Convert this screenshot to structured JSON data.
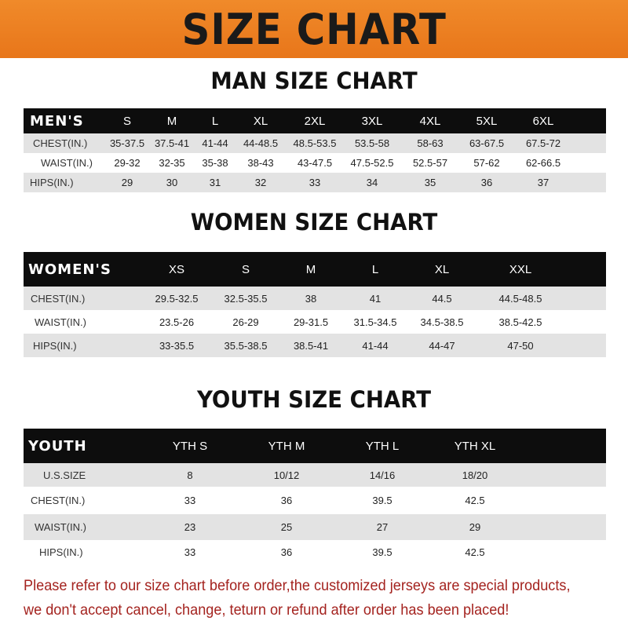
{
  "banner": {
    "title": "SIZE CHART",
    "color": "#ee8024"
  },
  "men": {
    "title": "MAN SIZE CHART",
    "header": "MEN'S",
    "sizes": [
      "S",
      "M",
      "L",
      "XL",
      "2XL",
      "3XL",
      "4XL",
      "5XL",
      "6XL"
    ],
    "rows": [
      {
        "label": "CHEST(IN.)",
        "values": [
          "35-37.5",
          "37.5-41",
          "41-44",
          "44-48.5",
          "48.5-53.5",
          "53.5-58",
          "58-63",
          "63-67.5",
          "67.5-72"
        ]
      },
      {
        "label": "WAIST(IN.)",
        "values": [
          "29-32",
          "32-35",
          "35-38",
          "38-43",
          "43-47.5",
          "47.5-52.5",
          "52.5-57",
          "57-62",
          "62-66.5"
        ]
      },
      {
        "label": "HIPS(IN.)",
        "values": [
          "29",
          "30",
          "31",
          "32",
          "33",
          "34",
          "35",
          "36",
          "37"
        ]
      }
    ]
  },
  "women": {
    "title": "WOMEN SIZE CHART",
    "header": "WOMEN'S",
    "sizes": [
      "XS",
      "S",
      "M",
      "L",
      "XL",
      "XXL"
    ],
    "rows": [
      {
        "label": "CHEST(IN.)",
        "values": [
          "29.5-32.5",
          "32.5-35.5",
          "38",
          "41",
          "44.5",
          "44.5-48.5"
        ]
      },
      {
        "label": "WAIST(IN.)",
        "values": [
          "23.5-26",
          "26-29",
          "29-31.5",
          "31.5-34.5",
          "34.5-38.5",
          "38.5-42.5"
        ]
      },
      {
        "label": "HIPS(IN.)",
        "values": [
          "33-35.5",
          "35.5-38.5",
          "38.5-41",
          "41-44",
          "44-47",
          "47-50"
        ]
      }
    ]
  },
  "youth": {
    "title": "YOUTH SIZE CHART",
    "header": "YOUTH",
    "sizes": [
      "YTH S",
      "YTH M",
      "YTH L",
      "YTH XL"
    ],
    "rows": [
      {
        "label": "U.S.SIZE",
        "values": [
          "8",
          "10/12",
          "14/16",
          "18/20"
        ]
      },
      {
        "label": "CHEST(IN.)",
        "values": [
          "33",
          "36",
          "39.5",
          "42.5"
        ]
      },
      {
        "label": "WAIST(IN.)",
        "values": [
          "23",
          "25",
          "27",
          "29"
        ]
      },
      {
        "label": "HIPS(IN.)",
        "values": [
          "33",
          "36",
          "39.5",
          "42.5"
        ]
      }
    ]
  },
  "note": {
    "line1": "Please refer to our size chart before order,the customized jerseys are special products,",
    "line2": "we don't accept cancel, change, teturn or refund after order has been placed!",
    "color": "#a4231f"
  }
}
